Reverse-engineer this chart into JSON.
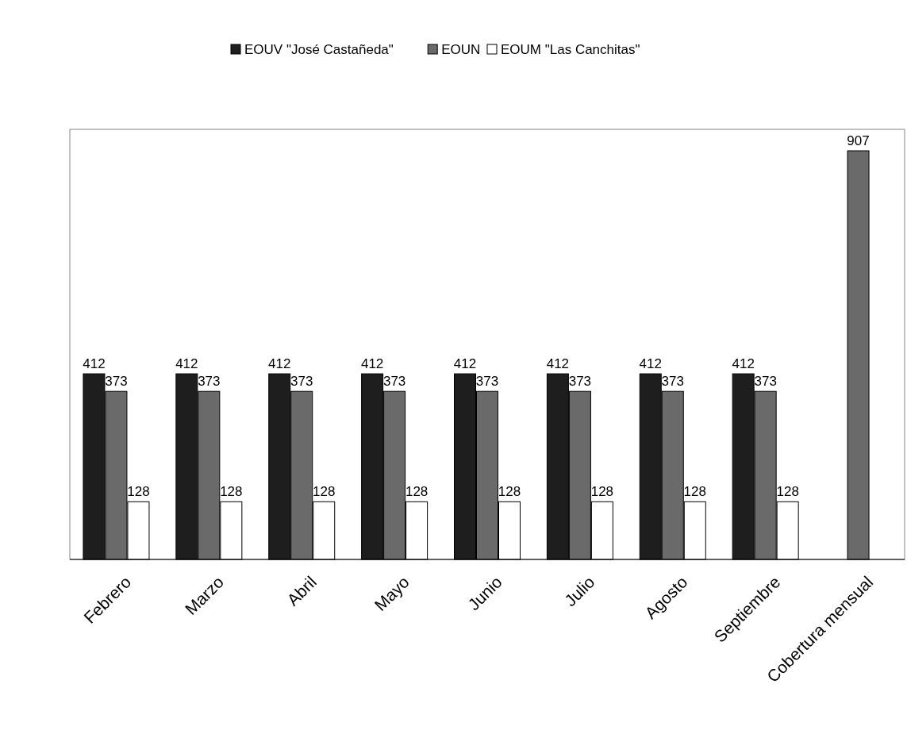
{
  "chart_data": {
    "type": "bar",
    "categories": [
      "Febrero",
      "Marzo",
      "Abril",
      "Mayo",
      "Junio",
      "Julio",
      "Agosto",
      "Septiembre",
      "Cobertura mensual"
    ],
    "series": [
      {
        "name": "EOUV \"José Castañeda\"",
        "color": "#1e1e1e",
        "values": [
          412,
          412,
          412,
          412,
          412,
          412,
          412,
          412,
          null
        ]
      },
      {
        "name": "EOUN",
        "color": "#6a6a6a",
        "values": [
          373,
          373,
          373,
          373,
          373,
          373,
          373,
          373,
          907
        ]
      },
      {
        "name": "EOUM \"Las Canchitas\"",
        "color": "#ffffff",
        "values": [
          128,
          128,
          128,
          128,
          128,
          128,
          128,
          128,
          null
        ]
      }
    ],
    "data_labels": true,
    "legend": "top",
    "grid": false
  }
}
